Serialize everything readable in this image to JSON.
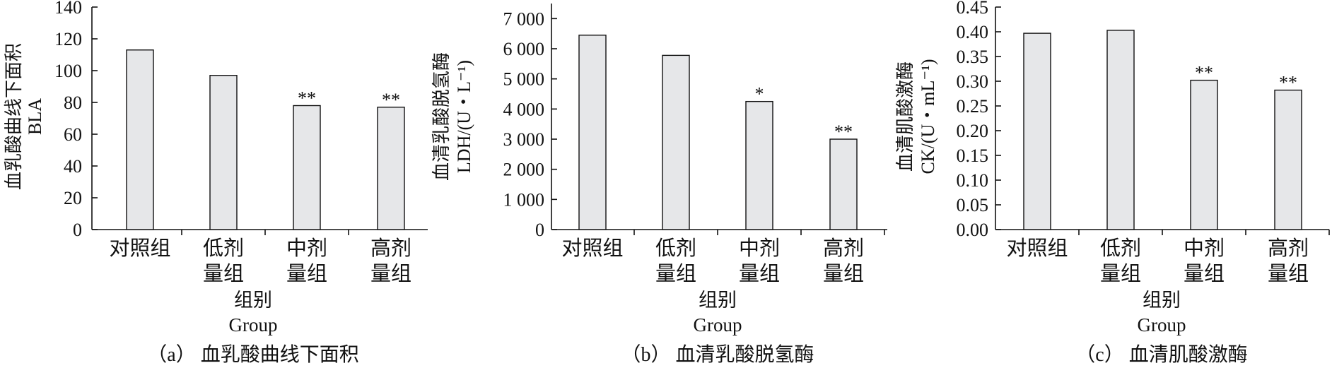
{
  "chart_data": [
    {
      "type": "bar",
      "categories": [
        [
          "对照组"
        ],
        [
          "低剂",
          "量组"
        ],
        [
          "中剂",
          "量组"
        ],
        [
          "高剂",
          "量组"
        ]
      ],
      "values": [
        113,
        97,
        78,
        77
      ],
      "significance": [
        "",
        "",
        "**",
        "**"
      ],
      "ylim": [
        0,
        140
      ],
      "yticks": [
        0,
        20,
        40,
        60,
        80,
        100,
        120,
        140
      ],
      "ytick_labels": [
        "0",
        "20",
        "40",
        "60",
        "80",
        "100",
        "120",
        "140"
      ],
      "ylabel_lines": [
        "血乳酸曲线下面积",
        "BLA"
      ],
      "xlabel_lines": [
        "组别",
        "Group"
      ],
      "caption": "（a） 血乳酸曲线下面积"
    },
    {
      "type": "bar",
      "categories": [
        [
          "对照组"
        ],
        [
          "低剂",
          "量组"
        ],
        [
          "中剂",
          "量组"
        ],
        [
          "高剂",
          "量组"
        ]
      ],
      "values": [
        6450,
        5780,
        4250,
        3000
      ],
      "significance": [
        "",
        "",
        "*",
        "**"
      ],
      "ylim": [
        0,
        7500
      ],
      "yticks": [
        0,
        1000,
        2000,
        3000,
        4000,
        5000,
        6000,
        7000
      ],
      "ytick_labels": [
        "0",
        "1 000",
        "2 000",
        "3 000",
        "4 000",
        "5 000",
        "6 000",
        "7 000"
      ],
      "ylabel_lines": [
        "血清乳酸脱氢酶",
        "LDH/(U・L⁻¹)"
      ],
      "xlabel_lines": [
        "组别",
        "Group"
      ],
      "caption": "（b） 血清乳酸脱氢酶"
    },
    {
      "type": "bar",
      "categories": [
        [
          "对照组"
        ],
        [
          "低剂",
          "量组"
        ],
        [
          "中剂",
          "量组"
        ],
        [
          "高剂",
          "量组"
        ]
      ],
      "values": [
        0.397,
        0.403,
        0.302,
        0.282
      ],
      "significance": [
        "",
        "",
        "**",
        "**"
      ],
      "ylim": [
        0,
        0.45
      ],
      "yticks": [
        0,
        0.05,
        0.1,
        0.15,
        0.2,
        0.25,
        0.3,
        0.35,
        0.4,
        0.45
      ],
      "ytick_labels": [
        "0.00",
        "0.05",
        "0.10",
        "0.15",
        "0.20",
        "0.25",
        "0.30",
        "0.35",
        "0.40",
        "0.45"
      ],
      "ylabel_lines": [
        "血清肌酸激酶",
        "CK/(U・mL⁻¹)"
      ],
      "xlabel_lines": [
        "组别",
        "Group"
      ],
      "caption": "（c） 血清肌酸激酶"
    }
  ]
}
